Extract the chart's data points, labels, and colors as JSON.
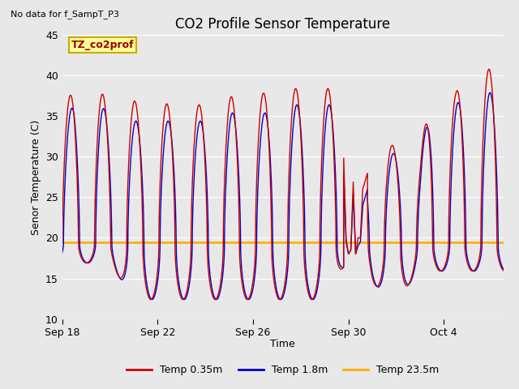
{
  "title": "CO2 Profile Sensor Temperature",
  "ylabel": "Senor Temperature (C)",
  "xlabel": "Time",
  "top_left_text": "No data for f_SampT_P3",
  "annotation_label": "TZ_co2prof",
  "annotation_color_bg": "#FFFF99",
  "annotation_color_border": "#CCAA00",
  "ylim": [
    10,
    45
  ],
  "yticks": [
    10,
    15,
    20,
    25,
    30,
    35,
    40,
    45
  ],
  "xtick_labels": [
    "Sep 18",
    "Sep 22",
    "Sep 26",
    "Sep 30",
    "Oct 4"
  ],
  "xtick_positions": [
    0,
    4,
    8,
    12,
    16
  ],
  "const_temp": 19.4,
  "legend_entries": [
    "Temp 0.35m",
    "Temp 1.8m",
    "Temp 23.5m"
  ],
  "legend_colors": [
    "#cc0000",
    "#0000cc",
    "#ffaa00"
  ],
  "plot_bg_color": "#e8e8e8",
  "fig_bg_color": "#e8e8e8",
  "grid_color": "#ffffff",
  "title_fontsize": 12,
  "label_fontsize": 9,
  "tick_fontsize": 9
}
